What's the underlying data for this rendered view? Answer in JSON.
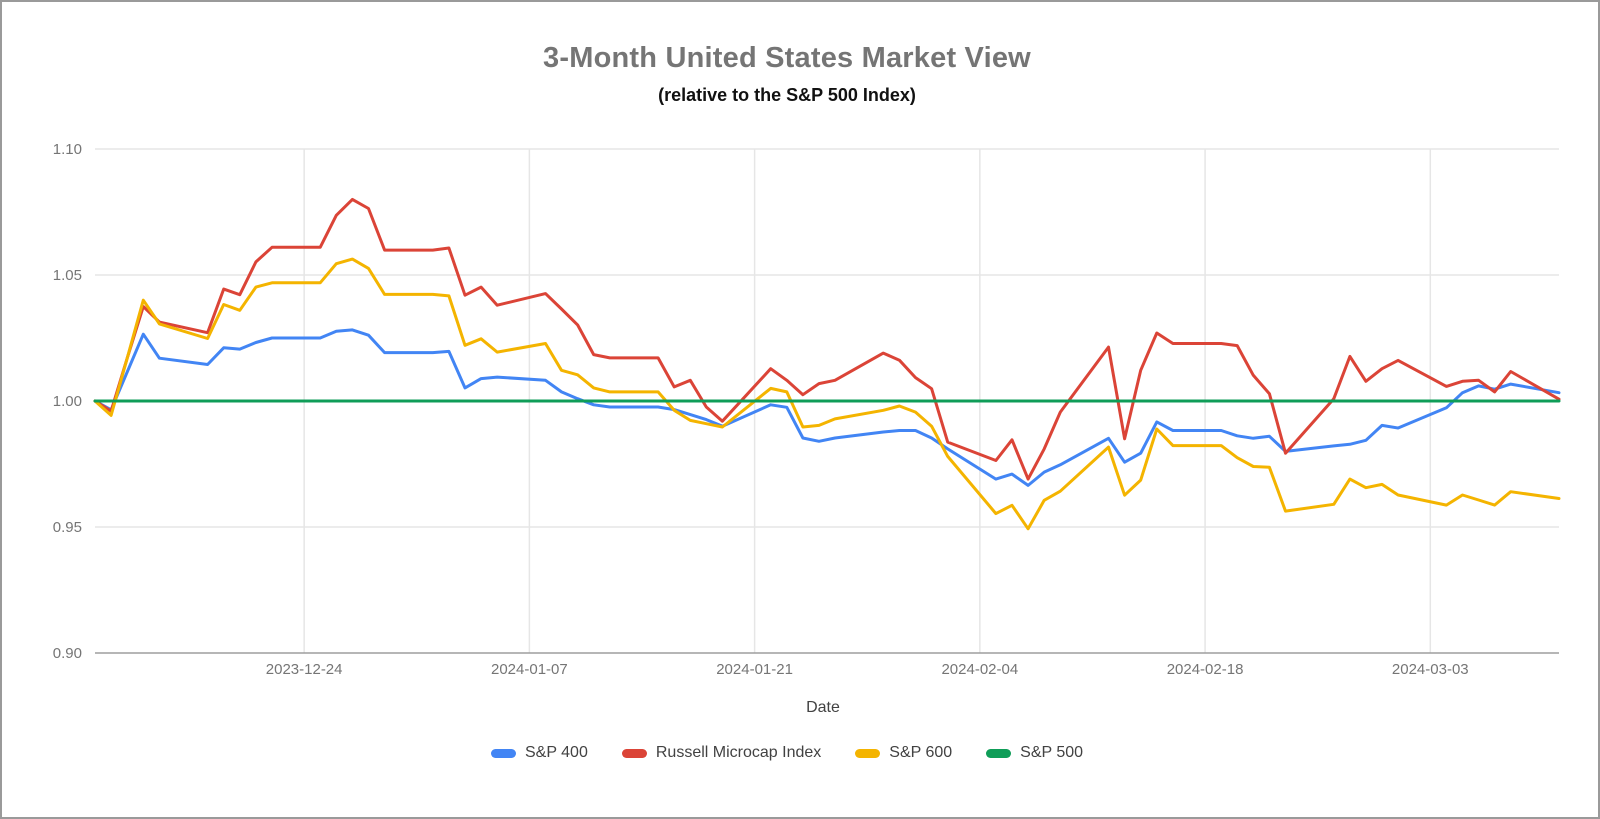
{
  "header": {
    "title": "3-Month United States Market View",
    "subtitle": "(relative to the S&P 500 Index)"
  },
  "chart_data": {
    "type": "line",
    "title": "3-Month United States Market View",
    "subtitle": "(relative to the S&P 500 Index)",
    "xlabel": "Date",
    "ylabel": "",
    "ylim": [
      0.9,
      1.1
    ],
    "grid": true,
    "legend_position": "bottom",
    "date_range": [
      "2023-12-11",
      "2024-03-11"
    ],
    "y_ticks": [
      1.1,
      1.05,
      1.0,
      0.95,
      0.9
    ],
    "y_tick_labels": [
      "1.10",
      "1.05",
      "1.00",
      "0.95",
      "0.90"
    ],
    "x_ticks": [
      "2023-12-24",
      "2024-01-07",
      "2024-01-21",
      "2024-02-04",
      "2024-02-18",
      "2024-03-03"
    ],
    "dates": [
      "2023-12-11",
      "2023-12-12",
      "2023-12-13",
      "2023-12-14",
      "2023-12-15",
      "2023-12-18",
      "2023-12-19",
      "2023-12-20",
      "2023-12-21",
      "2023-12-22",
      "2023-12-25",
      "2023-12-26",
      "2023-12-27",
      "2023-12-28",
      "2023-12-29",
      "2024-01-01",
      "2024-01-02",
      "2024-01-03",
      "2024-01-04",
      "2024-01-05",
      "2024-01-08",
      "2024-01-09",
      "2024-01-10",
      "2024-01-11",
      "2024-01-12",
      "2024-01-15",
      "2024-01-16",
      "2024-01-17",
      "2024-01-18",
      "2024-01-19",
      "2024-01-22",
      "2024-01-23",
      "2024-01-24",
      "2024-01-25",
      "2024-01-26",
      "2024-01-29",
      "2024-01-30",
      "2024-01-31",
      "2024-02-01",
      "2024-02-02",
      "2024-02-05",
      "2024-02-06",
      "2024-02-07",
      "2024-02-08",
      "2024-02-09",
      "2024-02-12",
      "2024-02-13",
      "2024-02-14",
      "2024-02-15",
      "2024-02-16",
      "2024-02-19",
      "2024-02-20",
      "2024-02-21",
      "2024-02-22",
      "2024-02-23",
      "2024-02-26",
      "2024-02-27",
      "2024-02-28",
      "2024-02-29",
      "2024-03-01",
      "2024-03-04",
      "2024-03-05",
      "2024-03-06",
      "2024-03-07",
      "2024-03-08",
      "2024-03-11"
    ],
    "series": [
      {
        "name": "S&P 400",
        "color": "#4285F4",
        "values": [
          1.0,
          0.9965,
          1.0115,
          1.0265,
          1.017,
          1.0145,
          1.0211,
          1.0206,
          1.0232,
          1.025,
          1.025,
          1.0277,
          1.0282,
          1.0261,
          1.0192,
          1.0192,
          1.0197,
          1.0052,
          1.0089,
          1.0095,
          1.0082,
          1.0036,
          1.0009,
          0.9985,
          0.9976,
          0.9976,
          0.9966,
          0.9946,
          0.9926,
          0.99,
          0.9985,
          0.9975,
          0.9853,
          0.984,
          0.9853,
          0.9877,
          0.9883,
          0.9883,
          0.9853,
          0.981,
          0.969,
          0.971,
          0.9665,
          0.9718,
          0.9747,
          0.9852,
          0.9757,
          0.9793,
          0.9917,
          0.9883,
          0.9883,
          0.9862,
          0.9852,
          0.986,
          0.98,
          0.9822,
          0.9828,
          0.9844,
          0.9903,
          0.9893,
          0.9973,
          1.0033,
          1.006,
          1.0047,
          1.0067,
          1.0033
        ]
      },
      {
        "name": "Russell Microcap Index",
        "color": "#DB4437",
        "values": [
          1.0,
          0.996,
          1.017,
          1.0375,
          1.0313,
          1.0271,
          1.0444,
          1.0422,
          1.0552,
          1.061,
          1.061,
          1.0737,
          1.08,
          1.0764,
          1.0599,
          1.0599,
          1.0607,
          1.042,
          1.0452,
          1.038,
          1.0426,
          1.0365,
          1.0302,
          1.0184,
          1.0171,
          1.0171,
          1.0056,
          1.0082,
          0.9976,
          0.992,
          1.0128,
          1.0082,
          1.0025,
          1.0069,
          1.0082,
          1.019,
          1.0162,
          1.0093,
          1.0049,
          0.9837,
          0.9764,
          0.9846,
          0.969,
          0.981,
          0.9956,
          1.0214,
          0.985,
          1.0122,
          1.027,
          1.0228,
          1.0228,
          1.022,
          1.0102,
          1.0029,
          0.9793,
          1.0009,
          1.0177,
          1.0078,
          1.0128,
          1.0161,
          1.0058,
          1.0078,
          1.0082,
          1.0036,
          1.0117,
          1.0007
        ]
      },
      {
        "name": "S&P 600",
        "color": "#F4B400",
        "values": [
          1.0,
          0.9943,
          1.017,
          1.04,
          1.0306,
          1.0248,
          1.0383,
          1.036,
          1.0452,
          1.0469,
          1.0469,
          1.0545,
          1.0563,
          1.0526,
          1.0423,
          1.0423,
          1.0417,
          1.0221,
          1.0247,
          1.0194,
          1.0228,
          1.0122,
          1.0104,
          1.0052,
          1.0036,
          1.0036,
          0.9963,
          0.9923,
          0.991,
          0.9897,
          1.005,
          1.0036,
          0.9897,
          0.9903,
          0.9929,
          0.9963,
          0.998,
          0.9956,
          0.99,
          0.978,
          0.9553,
          0.9586,
          0.9493,
          0.9606,
          0.9642,
          0.9817,
          0.9626,
          0.9686,
          0.9889,
          0.9823,
          0.9823,
          0.9775,
          0.974,
          0.9737,
          0.9563,
          0.959,
          0.969,
          0.9656,
          0.9669,
          0.9627,
          0.9587,
          0.9627,
          0.9607,
          0.9587,
          0.964,
          0.9613
        ]
      },
      {
        "name": "S&P 500",
        "color": "#0F9D58",
        "constant": 1.0
      }
    ]
  },
  "legend": {
    "items": [
      {
        "label": "S&P 400",
        "color": "#4285F4"
      },
      {
        "label": "Russell Microcap Index",
        "color": "#DB4437"
      },
      {
        "label": "S&P 600",
        "color": "#F4B400"
      },
      {
        "label": "S&P 500",
        "color": "#0F9D58"
      }
    ]
  },
  "axes": {
    "x_title": "Date"
  },
  "style_colors": {
    "gridline": "#e6e6e6",
    "axis_line": "#9e9e9e",
    "tick_text": "#757575"
  }
}
